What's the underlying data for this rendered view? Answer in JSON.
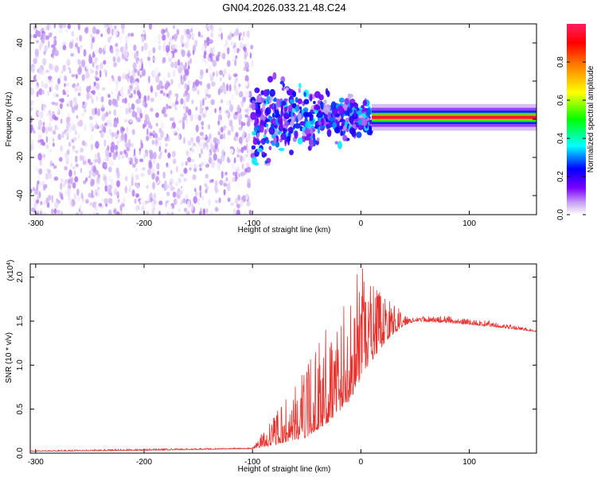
{
  "title": "GN04.2026.033.21.48.C24",
  "chart_data": [
    {
      "type": "heatmap",
      "title": "GN04.2026.033.21.48.C24",
      "xlabel": "Height of straight line (km)",
      "ylabel": "Frequency (Hz)",
      "xlim": [
        -305,
        162
      ],
      "ylim": [
        -50,
        50
      ],
      "xticks": [
        -300,
        -200,
        -100,
        0,
        100
      ],
      "yticks": [
        -40,
        -20,
        0,
        20,
        40
      ],
      "colorbar": {
        "label": "Normalized spectral amplitude",
        "range": [
          0,
          1
        ],
        "ticks": [
          0.0,
          0.2,
          0.4,
          0.6,
          0.8
        ],
        "tick_labels": [
          "0.0",
          "0.2",
          "0.4",
          "0.6",
          "0.8"
        ],
        "colormap": [
          "#ffffff",
          "#c8a6f2",
          "#7b00ff",
          "#0000ff",
          "#00ffff",
          "#00ff00",
          "#ffff00",
          "#ff8000",
          "#ff0000",
          "#ff2060"
        ]
      },
      "regions": [
        {
          "name": "noise",
          "x_range": [
            -305,
            -100
          ],
          "freq_range": [
            -50,
            50
          ],
          "amplitude_range": [
            0.0,
            0.15
          ]
        },
        {
          "name": "onset",
          "x_range": [
            -100,
            10
          ],
          "freq_range": [
            -20,
            20
          ],
          "amplitude_range": [
            0.1,
            0.45
          ]
        },
        {
          "name": "signal",
          "x_range": [
            10,
            162
          ],
          "freq_center": 1,
          "amplitude_range": [
            0.5,
            1.0
          ]
        }
      ]
    },
    {
      "type": "line",
      "xlabel": "Height of straight line (km)",
      "ylabel": "SNR (10 * v/v)",
      "y_multiplier": "(x10",
      "y_exponent": "4",
      "y_multiplier_close": ")",
      "xlim": [
        -305,
        162
      ],
      "ylim": [
        0,
        2.15
      ],
      "xticks": [
        -300,
        -200,
        -100,
        0,
        100
      ],
      "yticks": [
        0.0,
        0.5,
        1.0,
        1.5,
        2.0
      ],
      "ytick_labels": [
        "0.0",
        "0.5",
        "1.0",
        "1.5",
        "2.0"
      ],
      "color": "#e8312c",
      "envelope": {
        "x": [
          -305,
          -200,
          -100,
          -85,
          -70,
          -50,
          -30,
          -10,
          0,
          10,
          25,
          40,
          50,
          80,
          120,
          162
        ],
        "baseline": [
          0.02,
          0.03,
          0.05,
          0.08,
          0.12,
          0.18,
          0.35,
          0.6,
          0.85,
          1.05,
          1.3,
          1.45,
          1.5,
          1.48,
          1.44,
          1.38
        ],
        "peak": [
          0.03,
          0.05,
          0.06,
          0.35,
          0.6,
          1.0,
          1.5,
          1.85,
          2.15,
          1.95,
          1.75,
          1.6,
          1.55,
          1.56,
          1.5,
          1.4
        ]
      }
    }
  ]
}
